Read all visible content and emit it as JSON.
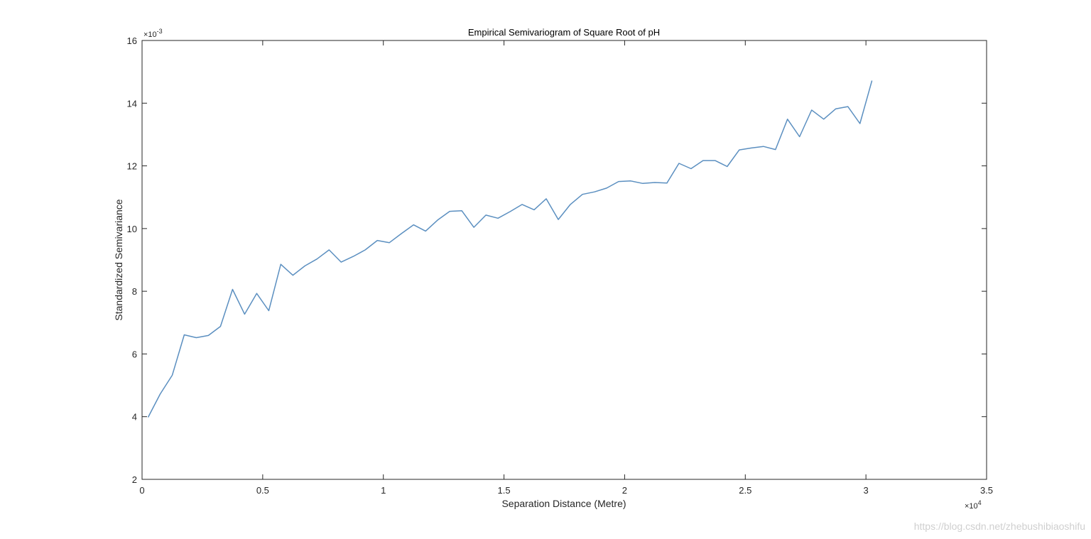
{
  "chart_data": {
    "type": "line",
    "title": "Empirical Semivariogram of Square Root of pH",
    "xlabel": "Separation Distance (Metre)",
    "ylabel": "Standardized Semivariance",
    "x_exponent_label": "×10",
    "x_exponent_power": "4",
    "y_exponent_label": "×10",
    "y_exponent_power": "-3",
    "xlim": [
      0,
      35000
    ],
    "ylim": [
      0.002,
      0.016
    ],
    "x_tick_values": [
      0,
      5000,
      10000,
      15000,
      20000,
      25000,
      30000,
      35000
    ],
    "x_tick_labels": [
      "0",
      "0.5",
      "1",
      "1.5",
      "2",
      "2.5",
      "3",
      "3.5"
    ],
    "y_tick_values": [
      0.002,
      0.004,
      0.006,
      0.008,
      0.01,
      0.012,
      0.014,
      0.016
    ],
    "y_tick_labels": [
      "2",
      "4",
      "6",
      "8",
      "10",
      "12",
      "14",
      "16"
    ],
    "grid": false,
    "line_color": "#5b8fc0",
    "series": [
      {
        "x": [
          250,
          750,
          1250,
          1750,
          2250,
          2750,
          3250,
          3750,
          4250,
          4750,
          5250,
          5750,
          6250,
          6750,
          7250,
          7750,
          8250,
          8750,
          9250,
          9750,
          10250,
          10750,
          11250,
          11750,
          12250,
          12750,
          13250,
          13750,
          14250,
          14750,
          15250,
          15750,
          16250,
          16750,
          17250,
          17750,
          18250,
          18750,
          19250,
          19750,
          20250,
          20750,
          21250,
          21750,
          22250,
          22750,
          23250,
          23750,
          24250,
          24750,
          25250,
          25750,
          26250,
          26750,
          27250,
          27750,
          28250,
          28750,
          29250,
          29750,
          30250
        ],
        "values": [
          0.00398,
          0.00472,
          0.00532,
          0.00661,
          0.00652,
          0.00659,
          0.00688,
          0.00806,
          0.00727,
          0.00793,
          0.00738,
          0.00886,
          0.00851,
          0.00881,
          0.00903,
          0.00932,
          0.00893,
          0.00911,
          0.00932,
          0.00962,
          0.00955,
          0.00984,
          0.01012,
          0.00992,
          0.01027,
          0.01055,
          0.01057,
          0.01004,
          0.01043,
          0.01033,
          0.01054,
          0.01077,
          0.0106,
          0.01095,
          0.01029,
          0.01077,
          0.01109,
          0.01117,
          0.01129,
          0.0115,
          0.01152,
          0.01144,
          0.01147,
          0.01145,
          0.01208,
          0.01191,
          0.01217,
          0.01217,
          0.01198,
          0.01251,
          0.01257,
          0.01262,
          0.01252,
          0.01349,
          0.01293,
          0.01378,
          0.01349,
          0.01382,
          0.01389,
          0.01335,
          0.01472
        ]
      }
    ]
  },
  "watermark": "https://blog.csdn.net/zhebushibiaoshifu"
}
